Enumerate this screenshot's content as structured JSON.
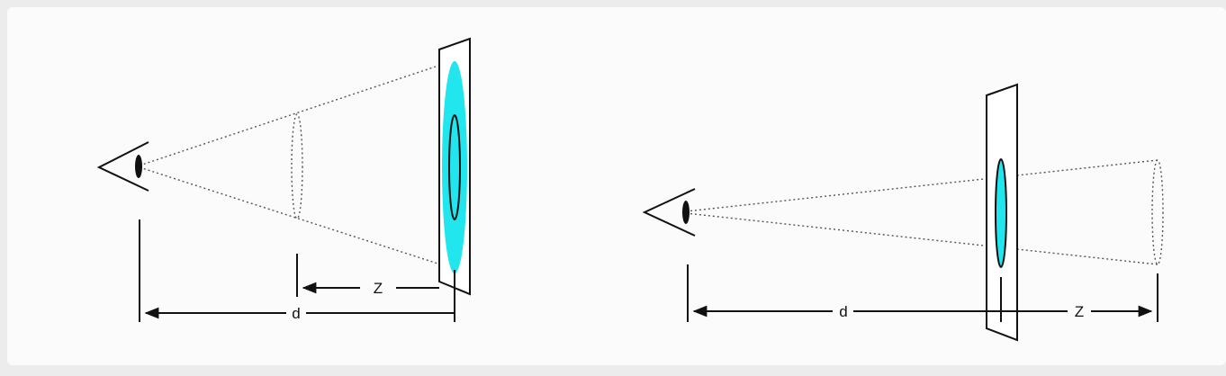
{
  "colors": {
    "background": "#fbfbfb",
    "line": "#111111",
    "image_fill": "#22e6ee"
  },
  "left_diagram": {
    "label_z": "Z",
    "label_d": "d"
  },
  "right_diagram": {
    "label_d": "d",
    "label_z": "Z"
  }
}
